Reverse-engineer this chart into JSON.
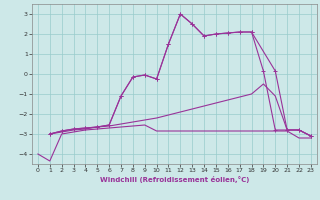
{
  "xlabel": "Windchill (Refroidissement éolien,°C)",
  "bg_color": "#cde8e8",
  "grid_color": "#99cccc",
  "line_color": "#993399",
  "xlim": [
    -0.5,
    23.5
  ],
  "ylim": [
    -4.5,
    3.5
  ],
  "yticks": [
    -4,
    -3,
    -2,
    -1,
    0,
    1,
    2,
    3
  ],
  "xticks": [
    0,
    1,
    2,
    3,
    4,
    5,
    6,
    7,
    8,
    9,
    10,
    11,
    12,
    13,
    14,
    15,
    16,
    17,
    18,
    19,
    20,
    21,
    22,
    23
  ],
  "series1_x": [
    0,
    1,
    2,
    3,
    4,
    5,
    6,
    7,
    8,
    9,
    10,
    11,
    12,
    13,
    14,
    15,
    16,
    17,
    18,
    19,
    20,
    21,
    22,
    23
  ],
  "series1_y": [
    -4.0,
    -4.35,
    -3.0,
    -2.9,
    -2.8,
    -2.75,
    -2.7,
    -2.65,
    -2.6,
    -2.55,
    -2.85,
    -2.85,
    -2.85,
    -2.85,
    -2.85,
    -2.85,
    -2.85,
    -2.85,
    -2.85,
    -2.85,
    -2.85,
    -2.85,
    -3.2,
    -3.2
  ],
  "series2_x": [
    1,
    2,
    3,
    4,
    5,
    6,
    7,
    8,
    9,
    10,
    11,
    12,
    13,
    14,
    15,
    16,
    17,
    18,
    19,
    20,
    21,
    22,
    23
  ],
  "series2_y": [
    -3.0,
    -2.9,
    -2.8,
    -2.75,
    -2.65,
    -2.6,
    -2.5,
    -2.4,
    -2.3,
    -2.2,
    -2.05,
    -1.9,
    -1.75,
    -1.6,
    -1.45,
    -1.3,
    -1.15,
    -1.0,
    -0.5,
    -1.1,
    -2.8,
    -2.8,
    -3.1
  ],
  "series3_x": [
    1,
    2,
    3,
    4,
    5,
    6,
    7,
    8,
    9,
    10,
    11,
    12,
    13,
    14,
    15,
    16,
    17,
    18,
    20,
    21,
    22,
    23
  ],
  "series3_y": [
    -3.0,
    -2.85,
    -2.75,
    -2.7,
    -2.65,
    -2.55,
    -1.1,
    -0.15,
    -0.05,
    -0.25,
    1.5,
    3.0,
    2.5,
    1.9,
    2.0,
    2.05,
    2.1,
    2.1,
    0.15,
    -2.8,
    -2.8,
    -3.1
  ],
  "series4_x": [
    1,
    2,
    3,
    4,
    5,
    6,
    7,
    8,
    9,
    10,
    11,
    12,
    13,
    14,
    15,
    16,
    17,
    18,
    19,
    20,
    21,
    22,
    23
  ],
  "series4_y": [
    -3.0,
    -2.85,
    -2.75,
    -2.7,
    -2.65,
    -2.55,
    -1.1,
    -0.15,
    -0.05,
    -0.25,
    1.5,
    3.0,
    2.5,
    1.9,
    2.0,
    2.05,
    2.1,
    2.1,
    0.15,
    -2.8,
    -2.8,
    -2.8,
    -3.1
  ]
}
